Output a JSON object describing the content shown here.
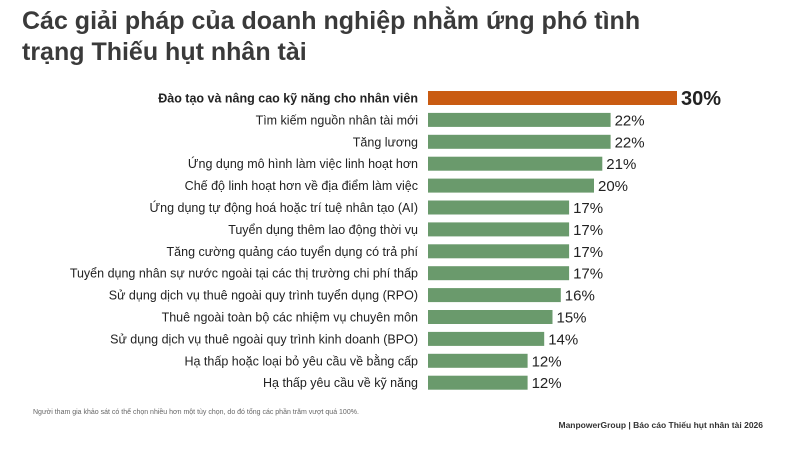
{
  "chart_data": {
    "type": "bar",
    "orientation": "horizontal",
    "title": "Các giải pháp của doanh nghiệp nhằm ứng phó tình trạng Thiếu hụt nhân tài",
    "categories": [
      "Đào tạo và nâng cao kỹ năng cho nhân viên",
      "Tìm kiếm nguồn nhân tài mới",
      "Tăng lương",
      "Ứng dụng mô hình làm việc linh hoạt hơn",
      "Chế độ linh hoạt hơn về địa điểm làm việc",
      "Ứng dụng tự động hoá hoặc trí tuệ nhân tạo (AI)",
      "Tuyển dụng thêm lao động thời vụ",
      "Tăng cường quảng cáo tuyển dụng có trả phí",
      "Tuyển dụng nhân sự nước ngoài tại các thị trường chi phí thấp",
      "Sử dụng dịch vụ thuê ngoài quy trình tuyển dụng (RPO)",
      "Thuê ngoài toàn bộ các nhiệm vụ chuyên môn",
      "Sử dụng dịch vụ thuê ngoài quy trình kinh doanh (BPO)",
      "Hạ thấp hoặc loại bỏ yêu cầu về bằng cấp",
      "Hạ thấp yêu cầu về kỹ năng"
    ],
    "values": [
      30,
      22,
      22,
      21,
      20,
      17,
      17,
      17,
      17,
      16,
      15,
      14,
      12,
      12
    ],
    "value_labels": [
      "30%",
      "22%",
      "22%",
      "21%",
      "20%",
      "17%",
      "17%",
      "17%",
      "17%",
      "16%",
      "15%",
      "14%",
      "12%",
      "12%"
    ],
    "highlight_index": 0,
    "xlim": [
      0,
      30
    ],
    "grid": false,
    "legend": "none",
    "colors": {
      "highlight": "#c95b12",
      "bar": "#6a9a6c",
      "title": "#3a3a3a",
      "text": "#222222"
    }
  },
  "footnote": "Người tham gia khảo sát có thể chọn nhiều hơn một tùy chọn, do đó tổng các phần trăm vượt quá 100%.",
  "source": "ManpowerGroup | Báo cáo Thiếu hụt nhân tài 2026"
}
